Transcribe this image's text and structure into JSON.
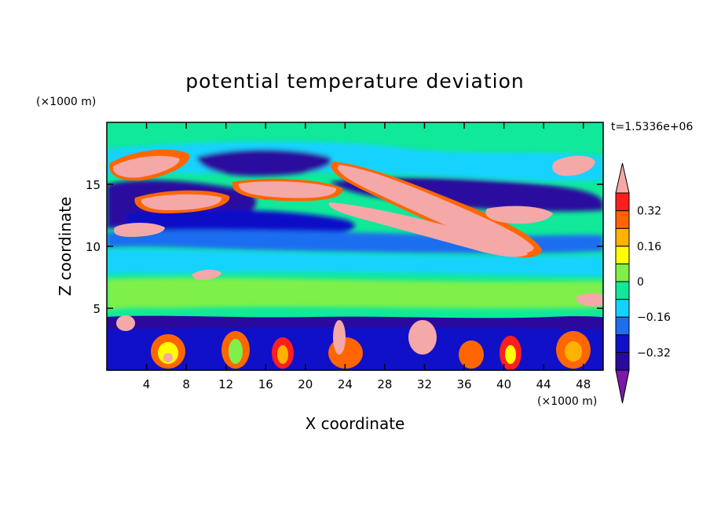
{
  "chart_data": {
    "type": "heatmap",
    "title": "potential temperature deviation",
    "xlabel": "X coordinate",
    "ylabel": "Z coordinate",
    "x_unit": "(×1000 m)",
    "y_unit": "(×1000 m)",
    "time_label": "t=1.5336e+06",
    "xlim": [
      0,
      50
    ],
    "ylim": [
      0,
      20
    ],
    "x_ticks": [
      4,
      8,
      12,
      16,
      20,
      24,
      28,
      32,
      36,
      40,
      44,
      48
    ],
    "y_ticks": [
      5,
      10,
      15
    ],
    "colorbar": {
      "levels": [
        -0.4,
        -0.32,
        -0.24,
        -0.16,
        -0.08,
        0,
        0.08,
        0.16,
        0.24,
        0.32,
        0.4
      ],
      "labeled_levels": [
        -0.32,
        -0.16,
        0,
        0.16,
        0.32
      ],
      "labels": [
        "−0.32",
        "−0.16",
        "0",
        "0.16",
        "0.32"
      ],
      "colors": [
        "#7a1aa8",
        "#2a0a9e",
        "#1010c8",
        "#1f6ef0",
        "#14d2ff",
        "#10e89a",
        "#7ff04a",
        "#ffff00",
        "#ffb300",
        "#ff6600",
        "#ff1e1e",
        "#f5a8a8"
      ],
      "extend": "both"
    }
  }
}
